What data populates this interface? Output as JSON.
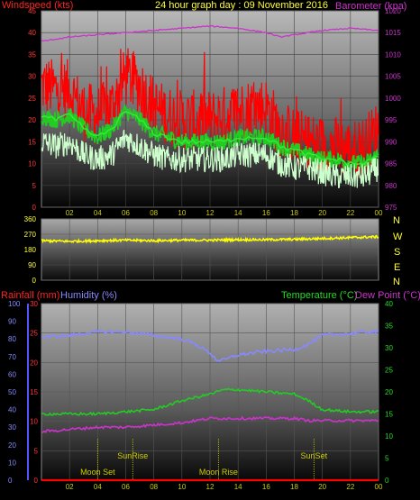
{
  "header": {
    "windspeed_label": "Windspeed (kts)",
    "title": "24 hour graph day : 09 November 2016",
    "barometer_label": "Barometer (kpa)"
  },
  "mid": {
    "compass": [
      "N",
      "W",
      "S",
      "E",
      "N"
    ]
  },
  "bottom": {
    "rainfall_label": "Rainfall (mm)",
    "humidity_label": "Humidity (%)",
    "temperature_label": "Temperature (°C)",
    "dewpoint_label": "Dew Point (°C)",
    "events": [
      {
        "label": "Moon Set",
        "hour": 4.0,
        "row": "bottom"
      },
      {
        "label": "SunRise",
        "hour": 6.5,
        "row": "top"
      },
      {
        "label": "Moon Rise",
        "hour": 12.6,
        "row": "bottom"
      },
      {
        "label": "SunSet",
        "hour": 19.4,
        "row": "top"
      }
    ]
  },
  "colors": {
    "windspeed": "#ff0000",
    "wind_avg": "#22cc22",
    "wind_lull": "#ccffcc",
    "barometer": "#cc33cc",
    "direction": "#ffff00",
    "humidity": "#8888ff",
    "temperature": "#22cc22",
    "dewpoint": "#cc33cc",
    "rainfall": "#ff0000",
    "events": "#cccc00"
  },
  "chart_data": [
    {
      "type": "line",
      "x_ticks": [
        "02",
        "04",
        "06",
        "08",
        "10",
        "12",
        "14",
        "16",
        "18",
        "20",
        "22",
        "00"
      ],
      "x_range_hours": [
        0,
        24
      ],
      "left_axis": {
        "label": "Windspeed (kts)",
        "range": [
          0,
          45
        ],
        "ticks": [
          0,
          5,
          10,
          15,
          20,
          25,
          30,
          35,
          40,
          45
        ]
      },
      "right_axis": {
        "label": "Barometer (kpa)",
        "range": [
          975,
          1020
        ],
        "ticks": [
          975,
          980,
          985,
          990,
          995,
          1000,
          1005,
          1010,
          1015,
          1020
        ]
      },
      "series": [
        {
          "name": "Windspeed (kts)",
          "axis": "left",
          "hours": [
            0,
            1,
            2,
            3,
            4,
            5,
            6,
            7,
            8,
            9,
            10,
            11,
            12,
            13,
            14,
            15,
            16,
            17,
            18,
            19,
            20,
            21,
            22,
            23,
            24
          ],
          "values": [
            28,
            27,
            27,
            22,
            21,
            23,
            30,
            28,
            23,
            21,
            20,
            20,
            20,
            21,
            22,
            23,
            23,
            18,
            16,
            15,
            14,
            14,
            13,
            14,
            18
          ]
        },
        {
          "name": "Wind average",
          "axis": "left",
          "hours": [
            0,
            1,
            2,
            3,
            4,
            5,
            6,
            7,
            8,
            9,
            10,
            11,
            12,
            13,
            14,
            15,
            16,
            17,
            18,
            19,
            20,
            21,
            22,
            23,
            24
          ],
          "values": [
            21,
            20,
            21,
            18,
            16,
            18,
            22,
            20,
            17,
            16,
            15,
            15,
            15,
            15,
            16,
            16,
            16,
            14,
            13,
            12,
            11,
            11,
            10,
            10,
            12
          ]
        },
        {
          "name": "Wind lull",
          "axis": "left",
          "hours": [
            0,
            1,
            2,
            3,
            4,
            5,
            6,
            7,
            8,
            9,
            10,
            11,
            12,
            13,
            14,
            15,
            16,
            17,
            18,
            19,
            20,
            21,
            22,
            23,
            24
          ],
          "values": [
            15,
            14,
            15,
            12,
            11,
            12,
            16,
            14,
            12,
            11,
            11,
            11,
            11,
            11,
            12,
            12,
            12,
            10,
            9,
            9,
            8,
            7,
            7,
            7,
            9
          ]
        },
        {
          "name": "Barometer (kpa)",
          "axis": "right",
          "hours": [
            0,
            2,
            4,
            6,
            8,
            10,
            12,
            14,
            16,
            17,
            18,
            20,
            22,
            24
          ],
          "values": [
            1013,
            1014,
            1014.5,
            1015,
            1015.5,
            1016,
            1016.5,
            1016,
            1015,
            1014,
            1014.5,
            1015.5,
            1016,
            1015.5
          ]
        }
      ]
    },
    {
      "type": "line",
      "x_range_hours": [
        0,
        24
      ],
      "left_axis": {
        "range": [
          0,
          360
        ],
        "ticks": [
          0,
          90,
          180,
          270,
          360
        ]
      },
      "series": [
        {
          "name": "Wind direction",
          "hours": [
            0,
            2,
            4,
            6,
            8,
            10,
            12,
            14,
            16,
            18,
            20,
            22,
            24
          ],
          "values": [
            232,
            228,
            232,
            235,
            232,
            235,
            235,
            238,
            238,
            240,
            245,
            250,
            255
          ]
        }
      ]
    },
    {
      "type": "line",
      "x_ticks": [
        "02",
        "04",
        "06",
        "08",
        "10",
        "12",
        "14",
        "16",
        "18",
        "20",
        "22",
        "00"
      ],
      "x_range_hours": [
        0,
        24
      ],
      "left_axis": {
        "label": "Humidity (%)",
        "range": [
          0,
          100
        ],
        "ticks": [
          0,
          10,
          20,
          30,
          40,
          50,
          60,
          70,
          80,
          90,
          100
        ]
      },
      "rain_axis": {
        "label": "Rainfall (mm)",
        "range": [
          0,
          30
        ],
        "ticks": [
          0,
          5,
          10,
          15,
          20,
          25,
          30
        ]
      },
      "right_axis": {
        "label": "Temperature (°C)",
        "range": [
          0,
          40
        ],
        "ticks": [
          0,
          5,
          10,
          15,
          20,
          25,
          30,
          35,
          40
        ]
      },
      "series": [
        {
          "name": "Humidity (%)",
          "axis": "left",
          "hours": [
            0,
            2,
            4,
            6,
            8,
            10,
            11,
            12,
            12.5,
            13,
            14,
            16,
            18,
            19,
            20,
            22,
            23,
            24
          ],
          "values": [
            81,
            82,
            84,
            84,
            82,
            80,
            77,
            72,
            68,
            68,
            71,
            73,
            74,
            77,
            82,
            83,
            84,
            84
          ]
        },
        {
          "name": "Temperature (°C)",
          "axis": "right",
          "hours": [
            0,
            2,
            4,
            6,
            8,
            10,
            12,
            13,
            14,
            16,
            18,
            19,
            20,
            22,
            24
          ],
          "values": [
            15,
            15,
            15,
            15.5,
            16,
            18,
            19.5,
            20.5,
            20.5,
            20,
            19.5,
            18,
            16,
            15.5,
            15.5
          ]
        },
        {
          "name": "Dew Point (°C)",
          "axis": "right",
          "hours": [
            0,
            2,
            4,
            6,
            8,
            10,
            12,
            14,
            16,
            18,
            19,
            20,
            22,
            24
          ],
          "values": [
            11,
            11.5,
            12,
            12,
            12.5,
            13,
            14,
            14,
            14,
            14,
            13.5,
            13.5,
            13.5,
            13.5
          ]
        },
        {
          "name": "Rainfall (mm)",
          "axis": "rain",
          "hours": [
            0,
            24
          ],
          "values": [
            0,
            0
          ]
        }
      ]
    }
  ]
}
